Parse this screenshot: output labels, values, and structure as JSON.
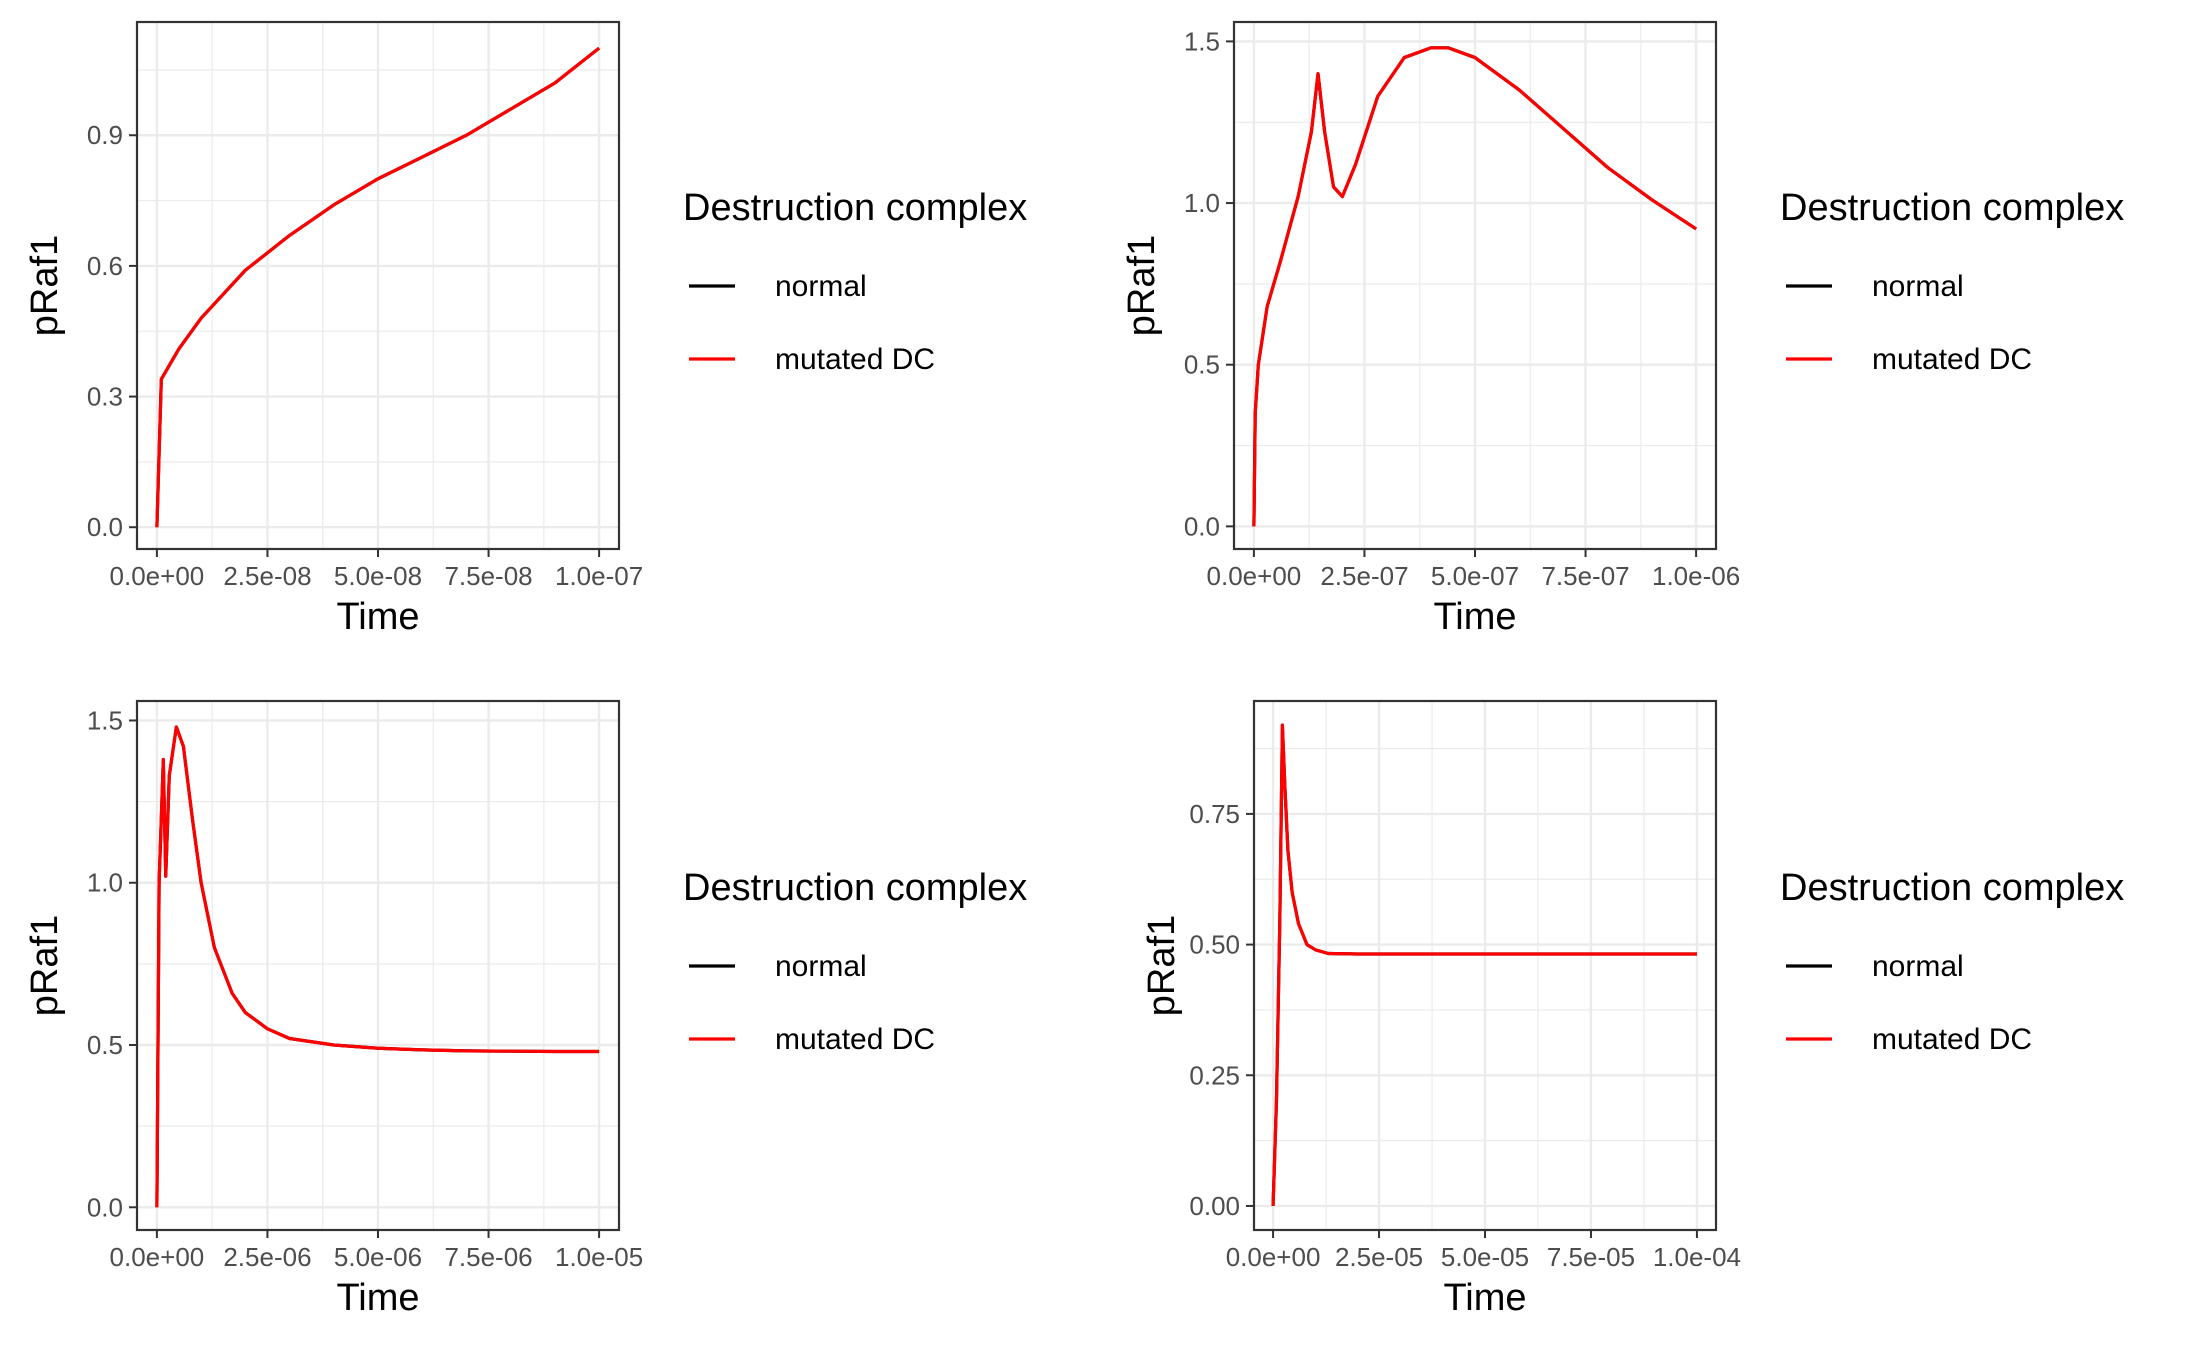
{
  "colors": {
    "normal": "#000000",
    "mutated": "#ff0000",
    "grid": "#ebebeb",
    "panel_border": "#333333"
  },
  "chart_data": [
    {
      "type": "line",
      "xlabel": "Time",
      "ylabel": "pRaf1",
      "xlim": [
        -4.5e-09,
        1.045e-07
      ],
      "ylim": [
        -0.05,
        1.16
      ],
      "x_ticks": [
        0,
        2.5e-08,
        5e-08,
        7.5e-08,
        1e-07
      ],
      "x_tick_labels": [
        "0.0e+00",
        "2.5e-08",
        "5.0e-08",
        "7.5e-08",
        "1.0e-07"
      ],
      "y_ticks": [
        0,
        0.3,
        0.6,
        0.9
      ],
      "y_tick_labels": [
        "0.0",
        "0.3",
        "0.6",
        "0.9"
      ],
      "legend": {
        "title": "Destruction complex",
        "placement": "right",
        "entries": [
          "normal",
          "mutated DC"
        ]
      },
      "series": [
        {
          "name": "normal",
          "color": "#000000",
          "x": [
            0,
            1e-09,
            5e-09,
            1e-08,
            2e-08,
            3e-08,
            4e-08,
            5e-08,
            6e-08,
            7e-08,
            8e-08,
            9e-08,
            1e-07
          ],
          "y": [
            0.0,
            0.34,
            0.41,
            0.48,
            0.59,
            0.67,
            0.74,
            0.8,
            0.85,
            0.9,
            0.96,
            1.02,
            1.1
          ]
        },
        {
          "name": "mutated DC",
          "color": "#ff0000",
          "x": [
            0,
            1e-09,
            5e-09,
            1e-08,
            2e-08,
            3e-08,
            4e-08,
            5e-08,
            6e-08,
            7e-08,
            8e-08,
            9e-08,
            1e-07
          ],
          "y": [
            0.0,
            0.34,
            0.41,
            0.48,
            0.59,
            0.67,
            0.74,
            0.8,
            0.85,
            0.9,
            0.96,
            1.02,
            1.1
          ]
        }
      ]
    },
    {
      "type": "line",
      "xlabel": "Time",
      "ylabel": "pRaf1",
      "xlim": [
        -4.5e-08,
        1.045e-06
      ],
      "ylim": [
        -0.07,
        1.56
      ],
      "x_ticks": [
        0,
        2.5e-07,
        5e-07,
        7.5e-07,
        1e-06
      ],
      "x_tick_labels": [
        "0.0e+00",
        "2.5e-07",
        "5.0e-07",
        "7.5e-07",
        "1.0e-06"
      ],
      "y_ticks": [
        0,
        0.5,
        1.0,
        1.5
      ],
      "y_tick_labels": [
        "0.0",
        "0.5",
        "1.0",
        "1.5"
      ],
      "legend": {
        "title": "Destruction complex",
        "placement": "right",
        "entries": [
          "normal",
          "mutated DC"
        ]
      },
      "series": [
        {
          "name": "normal",
          "color": "#000000",
          "x": [
            0,
            3e-09,
            1e-08,
            3e-08,
            6e-08,
            1e-07,
            1.3e-07,
            1.45e-07,
            1.6e-07,
            1.8e-07,
            2e-07,
            2.3e-07,
            2.8e-07,
            3.4e-07,
            4e-07,
            4.4e-07,
            5e-07,
            6e-07,
            7e-07,
            8e-07,
            9e-07,
            1e-06
          ],
          "y": [
            0.0,
            0.35,
            0.5,
            0.68,
            0.82,
            1.02,
            1.22,
            1.4,
            1.22,
            1.05,
            1.02,
            1.12,
            1.33,
            1.45,
            1.48,
            1.48,
            1.45,
            1.35,
            1.23,
            1.11,
            1.01,
            0.92
          ]
        },
        {
          "name": "mutated DC",
          "color": "#ff0000",
          "x": [
            0,
            3e-09,
            1e-08,
            3e-08,
            6e-08,
            1e-07,
            1.3e-07,
            1.45e-07,
            1.6e-07,
            1.8e-07,
            2e-07,
            2.3e-07,
            2.8e-07,
            3.4e-07,
            4e-07,
            4.4e-07,
            5e-07,
            6e-07,
            7e-07,
            8e-07,
            9e-07,
            1e-06
          ],
          "y": [
            0.0,
            0.35,
            0.5,
            0.68,
            0.82,
            1.02,
            1.22,
            1.4,
            1.22,
            1.05,
            1.02,
            1.12,
            1.33,
            1.45,
            1.48,
            1.48,
            1.45,
            1.35,
            1.23,
            1.11,
            1.01,
            0.92
          ]
        }
      ]
    },
    {
      "type": "line",
      "xlabel": "Time",
      "ylabel": "pRaf1",
      "xlim": [
        -4.5e-07,
        1.045e-05
      ],
      "ylim": [
        -0.07,
        1.56
      ],
      "x_ticks": [
        0,
        2.5e-06,
        5e-06,
        7.5e-06,
        1e-05
      ],
      "x_tick_labels": [
        "0.0e+00",
        "2.5e-06",
        "5.0e-06",
        "7.5e-06",
        "1.0e-05"
      ],
      "y_ticks": [
        0,
        0.5,
        1.0,
        1.5
      ],
      "y_tick_labels": [
        "0.0",
        "0.5",
        "1.0",
        "1.5"
      ],
      "legend": {
        "title": "Destruction complex",
        "placement": "right",
        "entries": [
          "normal",
          "mutated DC"
        ]
      },
      "series": [
        {
          "name": "normal",
          "color": "#000000",
          "x": [
            0,
            5e-08,
            1.45e-07,
            2e-07,
            2.8e-07,
            4.4e-07,
            6e-07,
            8e-07,
            1e-06,
            1.3e-06,
            1.7e-06,
            2e-06,
            2.5e-06,
            3e-06,
            4e-06,
            5e-06,
            6e-06,
            7e-06,
            8e-06,
            9e-06,
            1e-05
          ],
          "y": [
            0.0,
            1.0,
            1.38,
            1.02,
            1.33,
            1.48,
            1.42,
            1.2,
            1.0,
            0.8,
            0.66,
            0.6,
            0.55,
            0.52,
            0.5,
            0.49,
            0.485,
            0.482,
            0.481,
            0.48,
            0.48
          ]
        },
        {
          "name": "mutated DC",
          "color": "#ff0000",
          "x": [
            0,
            5e-08,
            1.45e-07,
            2e-07,
            2.8e-07,
            4.4e-07,
            6e-07,
            8e-07,
            1e-06,
            1.3e-06,
            1.7e-06,
            2e-06,
            2.5e-06,
            3e-06,
            4e-06,
            5e-06,
            6e-06,
            7e-06,
            8e-06,
            9e-06,
            1e-05
          ],
          "y": [
            0.0,
            1.0,
            1.38,
            1.02,
            1.33,
            1.48,
            1.42,
            1.2,
            1.0,
            0.8,
            0.66,
            0.6,
            0.55,
            0.52,
            0.5,
            0.49,
            0.485,
            0.482,
            0.481,
            0.48,
            0.48
          ]
        }
      ]
    },
    {
      "type": "line",
      "xlabel": "Time",
      "ylabel": "pRaf1",
      "xlim": [
        -4.5e-06,
        0.0001045
      ],
      "ylim": [
        -0.046,
        0.966
      ],
      "x_ticks": [
        0,
        2.5e-05,
        5e-05,
        7.5e-05,
        0.0001
      ],
      "x_tick_labels": [
        "0.0e+00",
        "2.5e-05",
        "5.0e-05",
        "7.5e-05",
        "1.0e-04"
      ],
      "y_ticks": [
        0,
        0.25,
        0.5,
        0.75
      ],
      "y_tick_labels": [
        "0.00",
        "0.25",
        "0.50",
        "0.75"
      ],
      "legend": {
        "title": "Destruction complex",
        "placement": "right",
        "entries": [
          "normal",
          "mutated DC"
        ]
      },
      "series": [
        {
          "name": "normal",
          "color": "#000000",
          "x": [
            0,
            8e-07,
            1.6e-06,
            2.2e-06,
            2.8e-06,
            3.5e-06,
            4.5e-06,
            6e-06,
            8e-06,
            1e-05,
            1.3e-05,
            2e-05,
            4e-05,
            6e-05,
            8e-05,
            0.0001
          ],
          "y": [
            0.0,
            0.2,
            0.55,
            0.92,
            0.8,
            0.68,
            0.6,
            0.54,
            0.5,
            0.49,
            0.483,
            0.482,
            0.482,
            0.482,
            0.482,
            0.482
          ]
        },
        {
          "name": "mutated DC",
          "color": "#ff0000",
          "x": [
            0,
            8e-07,
            1.6e-06,
            2.2e-06,
            2.8e-06,
            3.5e-06,
            4.5e-06,
            6e-06,
            8e-06,
            1e-05,
            1.3e-05,
            2e-05,
            4e-05,
            6e-05,
            8e-05,
            0.0001
          ],
          "y": [
            0.0,
            0.2,
            0.55,
            0.92,
            0.8,
            0.68,
            0.6,
            0.54,
            0.5,
            0.49,
            0.483,
            0.482,
            0.482,
            0.482,
            0.482,
            0.482
          ]
        }
      ]
    }
  ]
}
